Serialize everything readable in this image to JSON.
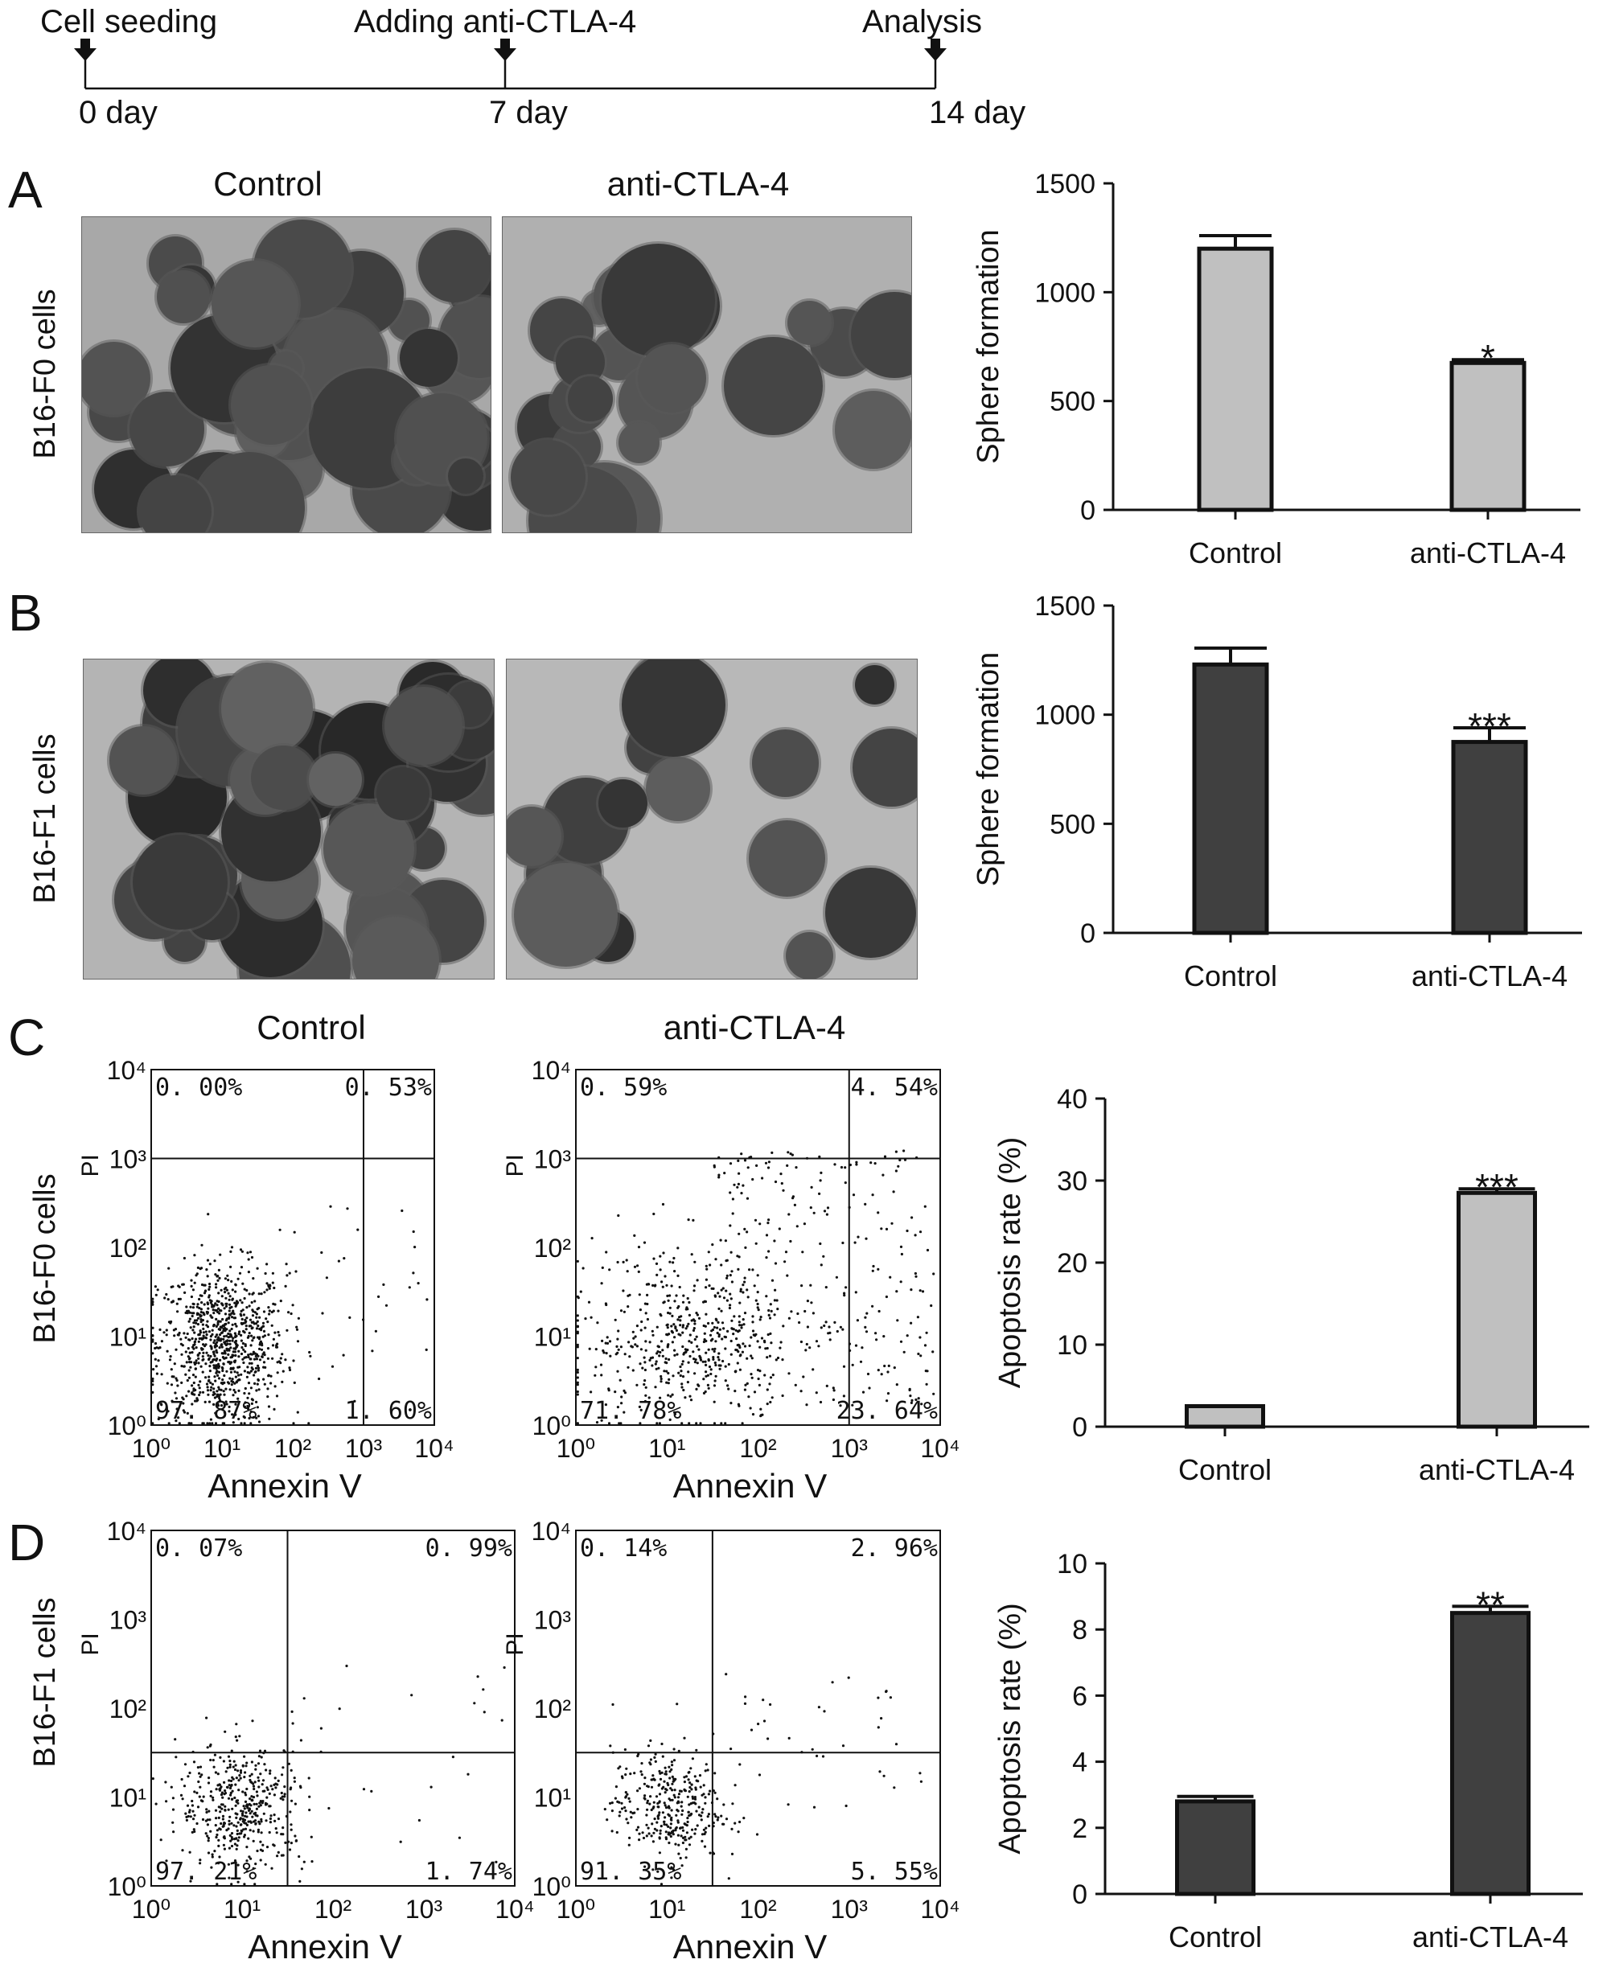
{
  "timeline": {
    "events": [
      {
        "label": "Cell seeding",
        "day": "0 day"
      },
      {
        "label": "Adding anti-CTLA-4",
        "day": "7 day"
      },
      {
        "label": "Analysis",
        "day": "14 day"
      }
    ]
  },
  "panels": {
    "A": {
      "letter": "A",
      "row_label": "B16-F0 cells",
      "col_left": "Control",
      "col_right": "anti-CTLA-4"
    },
    "B": {
      "letter": "B",
      "row_label": "B16-F1 cells"
    },
    "C": {
      "letter": "C",
      "row_label": "B16-F0 cells",
      "col_left": "Control",
      "col_right": "anti-CTLA-4"
    },
    "D": {
      "letter": "D",
      "row_label": "B16-F1 cells"
    }
  },
  "flow": {
    "x_label": "Annexin V",
    "y_label": "PI",
    "tick_labels": [
      "10⁰",
      "10¹",
      "10²",
      "10³",
      "10⁴"
    ],
    "plots": [
      {
        "quadrants": {
          "ul": "0. 00%",
          "ur": "0. 53%",
          "ll": "97. 87%",
          "lr": "1. 60%"
        },
        "gate_x": 3.0,
        "gate_y": 3.0
      },
      {
        "quadrants": {
          "ul": "0. 59%",
          "ur": "4. 54%",
          "ll": "71. 78%",
          "lr": "23. 64%"
        },
        "gate_x": 3.0,
        "gate_y": 3.0
      },
      {
        "quadrants": {
          "ul": "0. 07%",
          "ur": "0. 99%",
          "ll": "97. 21%",
          "lr": "1. 74%"
        },
        "gate_x": 1.5,
        "gate_y": 1.5
      },
      {
        "quadrants": {
          "ul": "0. 14%",
          "ur": "2. 96%",
          "ll": "91. 35%",
          "lr": "5. 55%"
        },
        "gate_x": 1.5,
        "gate_y": 1.5
      }
    ]
  },
  "colors": {
    "light_bar": "#c0c0c0",
    "dark_bar": "#404040",
    "axis": "#111111"
  },
  "chart_data": [
    {
      "type": "bar",
      "categories": [
        "Control",
        "anti-CTLA-4"
      ],
      "values": [
        1200,
        675
      ],
      "errors": [
        60,
        15
      ],
      "ylabel": "Sphere formation",
      "ylim": [
        0,
        1500
      ],
      "yticks": [
        0,
        500,
        1000,
        1500
      ],
      "significance": [
        "",
        "*"
      ],
      "color": "#c0c0c0"
    },
    {
      "type": "bar",
      "categories": [
        "Control",
        "anti-CTLA-4"
      ],
      "values": [
        1230,
        875
      ],
      "errors": [
        75,
        65
      ],
      "ylabel": "Sphere formation",
      "ylim": [
        0,
        1500
      ],
      "yticks": [
        0,
        500,
        1000,
        1500
      ],
      "significance": [
        "",
        "***"
      ],
      "color": "#404040"
    },
    {
      "type": "bar",
      "categories": [
        "Control",
        "anti-CTLA-4"
      ],
      "values": [
        2.5,
        28.5
      ],
      "errors": [
        0,
        0.5
      ],
      "ylabel": "Apoptosis rate (%)",
      "ylim": [
        0,
        40
      ],
      "yticks": [
        0,
        10,
        20,
        30,
        40
      ],
      "significance": [
        "",
        "***"
      ],
      "color": "#c0c0c0"
    },
    {
      "type": "bar",
      "categories": [
        "Control",
        "anti-CTLA-4"
      ],
      "values": [
        2.8,
        8.5
      ],
      "errors": [
        0.15,
        0.2
      ],
      "ylabel": "Apoptosis rate (%)",
      "ylim": [
        0,
        10
      ],
      "yticks": [
        0,
        2,
        4,
        6,
        8,
        10
      ],
      "significance": [
        "",
        "**"
      ],
      "color": "#404040"
    }
  ]
}
